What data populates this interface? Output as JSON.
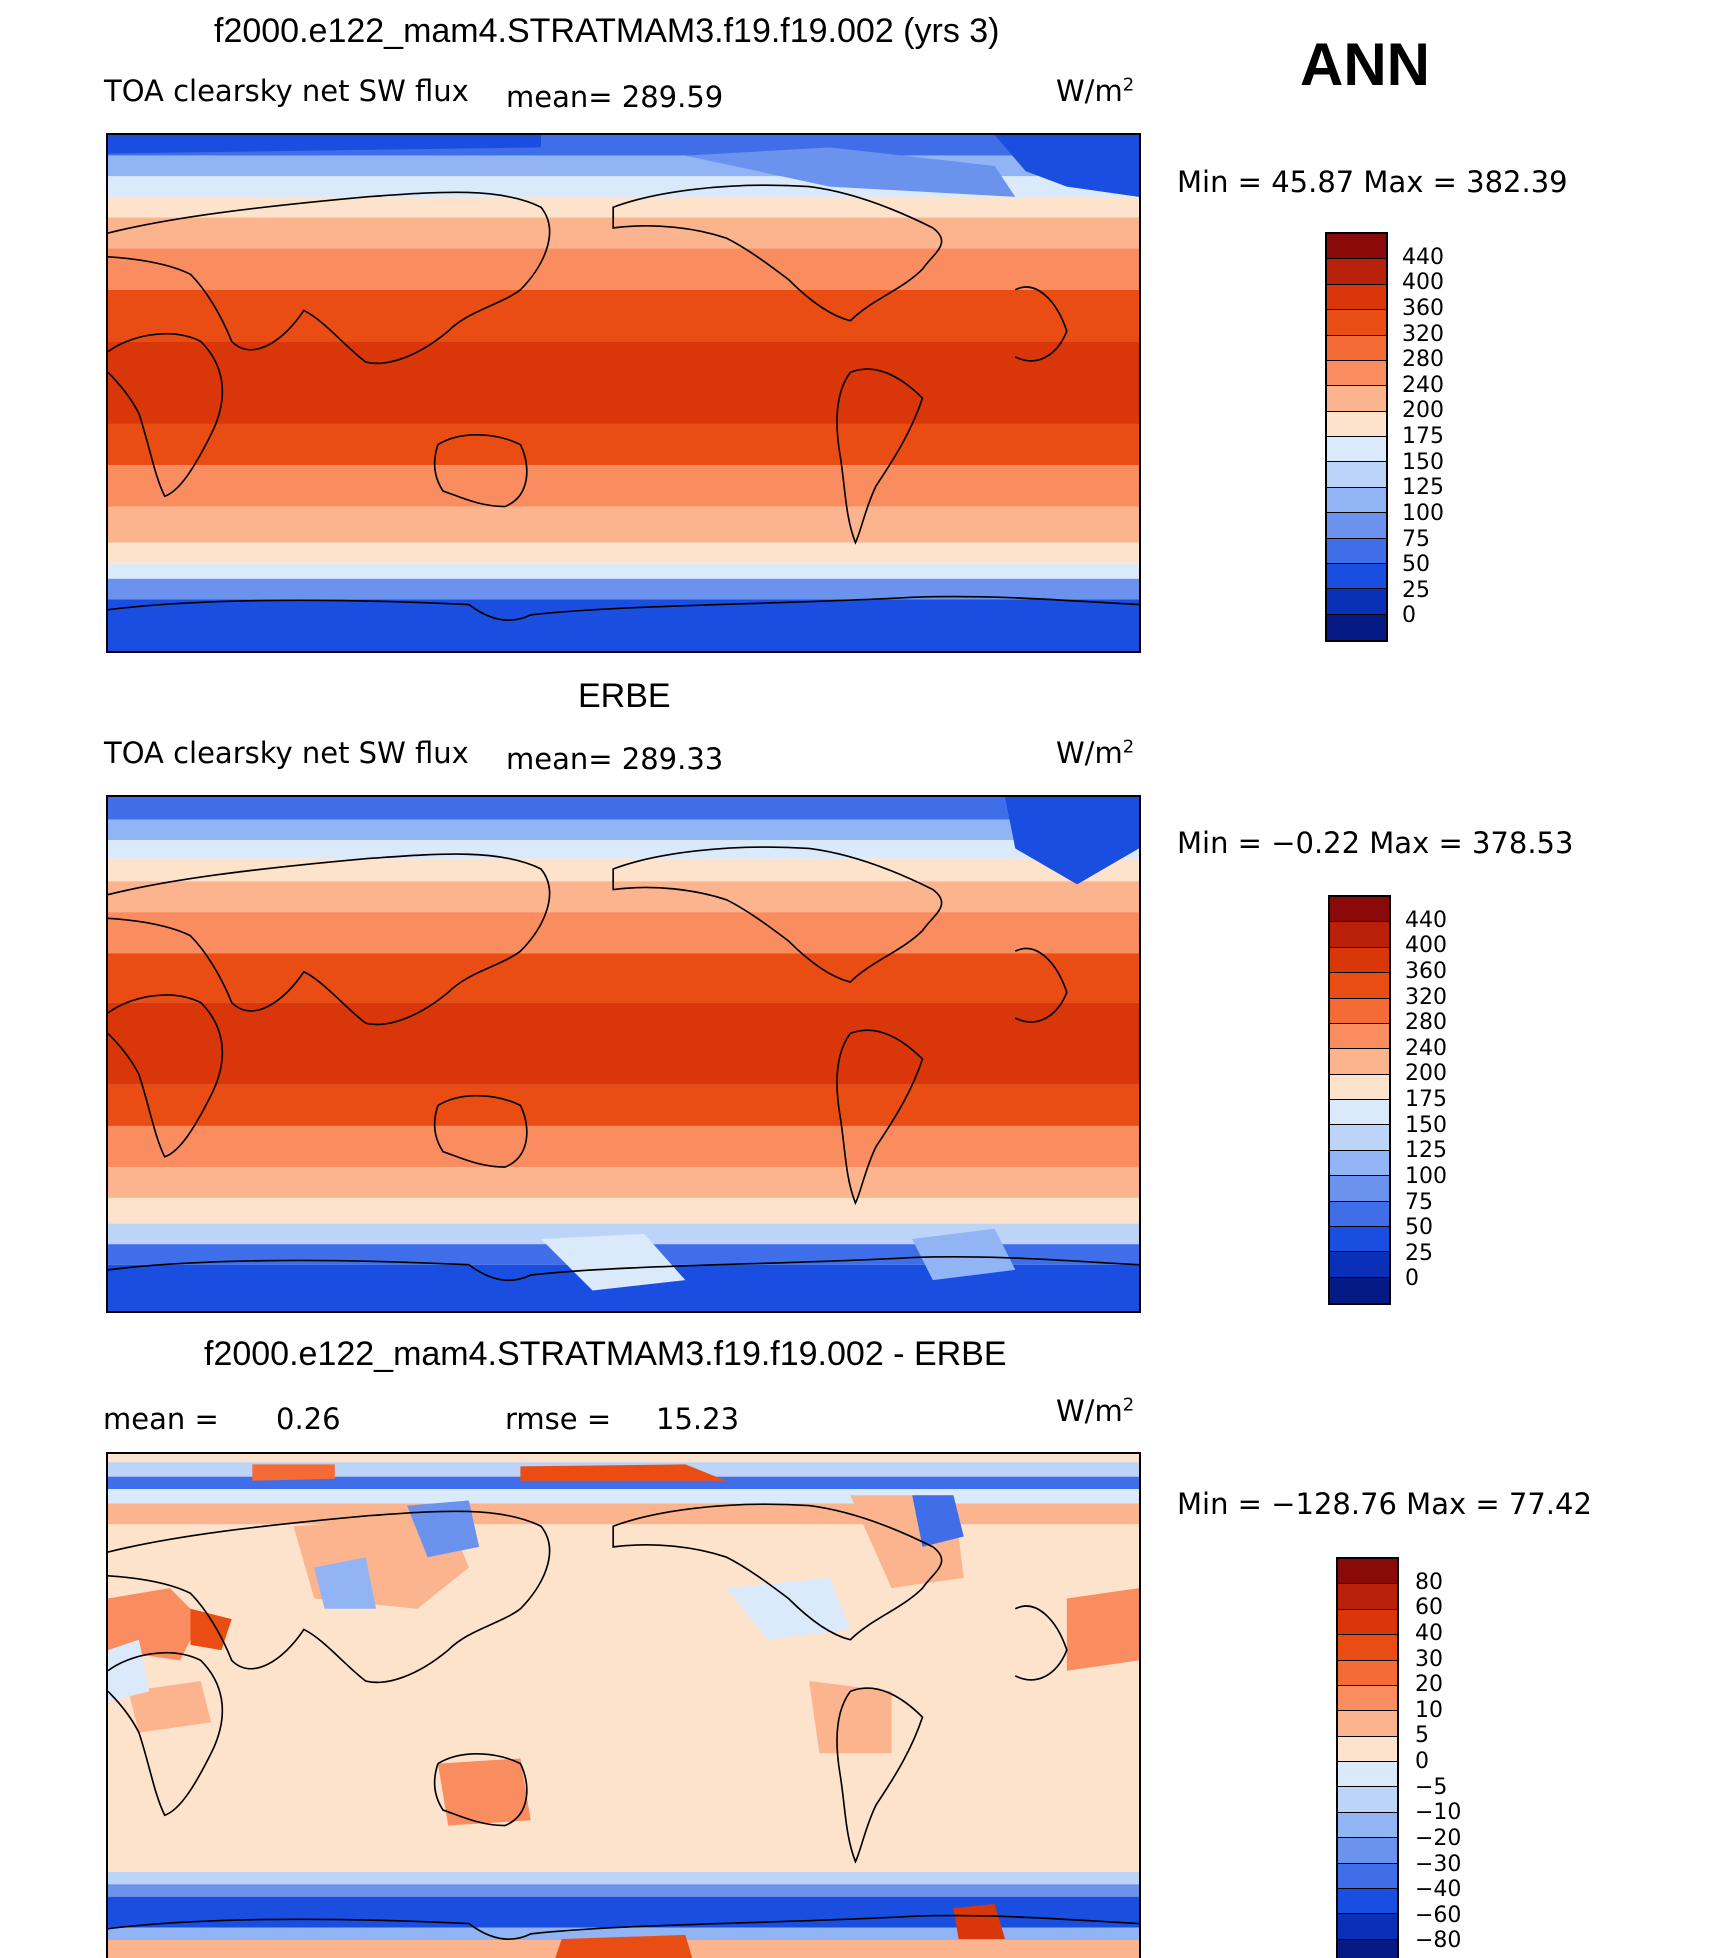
{
  "season": "ANN",
  "panels": [
    {
      "title": "f2000.e122_mam4.STRATMAM3.f19.f19.002 (yrs 3)",
      "variable": "TOA clearsky net SW flux",
      "mean_text": "mean= 289.59",
      "units": "W/m",
      "units_sup": "2",
      "minmax_text": "Min =   45.87 Max =  382.39",
      "mean": 289.59,
      "min": 45.87,
      "max": 382.39,
      "colorbar": {
        "levels": [
          "440",
          "400",
          "360",
          "320",
          "280",
          "240",
          "200",
          "175",
          "150",
          "125",
          "100",
          "75",
          "50",
          "25",
          "0"
        ],
        "colors": [
          "#8a0a0a",
          "#b8200a",
          "#d9360a",
          "#ea4d14",
          "#f46b35",
          "#f98d60",
          "#fcb48f",
          "#fde2cc",
          "#dbeafb",
          "#bcd4f8",
          "#91b4f5",
          "#6b93ee",
          "#3f6ee8",
          "#1a4ee0",
          "#0b30b8",
          "#061a86"
        ]
      }
    },
    {
      "title": "ERBE",
      "variable": "TOA clearsky net SW flux",
      "mean_text": "mean= 289.33",
      "units": "W/m",
      "units_sup": "2",
      "minmax_text": "Min =  −0.22 Max =  378.53",
      "mean": 289.33,
      "min": -0.22,
      "max": 378.53,
      "colorbar": {
        "levels": [
          "440",
          "400",
          "360",
          "320",
          "280",
          "240",
          "200",
          "175",
          "150",
          "125",
          "100",
          "75",
          "50",
          "25",
          "0"
        ],
        "colors": [
          "#8a0a0a",
          "#b8200a",
          "#d9360a",
          "#ea4d14",
          "#f46b35",
          "#f98d60",
          "#fcb48f",
          "#fde2cc",
          "#dbeafb",
          "#bcd4f8",
          "#91b4f5",
          "#6b93ee",
          "#3f6ee8",
          "#1a4ee0",
          "#0b30b8",
          "#061a86"
        ]
      }
    },
    {
      "title": "f2000.e122_mam4.STRATMAM3.f19.f19.002 - ERBE",
      "mean_label": "mean =",
      "mean_value": "0.26",
      "rmse_label": "rmse =",
      "rmse_value": "15.23",
      "units": "W/m",
      "units_sup": "2",
      "minmax_text": "Min = −128.76 Max =   77.42",
      "mean": 0.26,
      "rmse": 15.23,
      "min": -128.76,
      "max": 77.42,
      "colorbar": {
        "levels": [
          "80",
          "60",
          "40",
          "30",
          "20",
          "10",
          "5",
          "0",
          "−5",
          "−10",
          "−20",
          "−30",
          "−40",
          "−60",
          "−80"
        ],
        "colors": [
          "#8a0a0a",
          "#b8200a",
          "#d9360a",
          "#ea4d14",
          "#f46b35",
          "#f98d60",
          "#fcb48f",
          "#fde2cc",
          "#dbeafb",
          "#bcd4f8",
          "#91b4f5",
          "#6b93ee",
          "#3f6ee8",
          "#1a4ee0",
          "#0b30b8",
          "#061a86"
        ]
      }
    }
  ]
}
